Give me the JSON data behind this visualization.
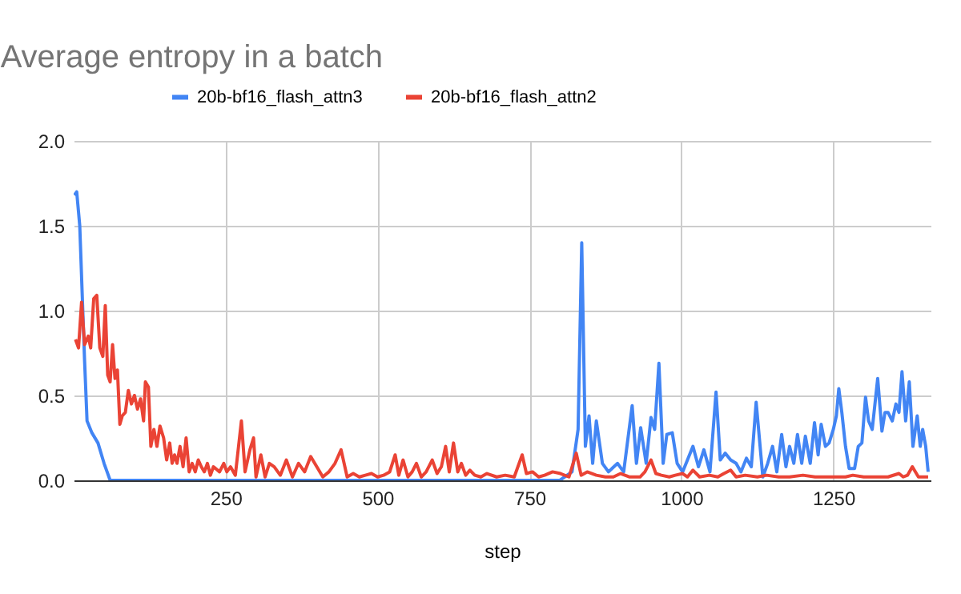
{
  "chart_data": {
    "type": "line",
    "title": "Average entropy in a batch",
    "xlabel": "step",
    "xlim": [
      0,
      1410
    ],
    "ylim": [
      0,
      2
    ],
    "xticks": [
      250,
      500,
      750,
      1000,
      1250
    ],
    "yticks": [
      {
        "value": 0,
        "label": "0.0"
      },
      {
        "value": 0.5,
        "label": "0.5"
      },
      {
        "value": 1,
        "label": "1.0"
      },
      {
        "value": 1.5,
        "label": "1.5"
      },
      {
        "value": 2,
        "label": "2.0"
      }
    ],
    "grid": true,
    "legend": "top",
    "series": [
      {
        "name": "20b-bf16_flash_attn3",
        "color": "#4285f4",
        "x": [
          1,
          5,
          10,
          18,
          22,
          30,
          40,
          50,
          60,
          200,
          400,
          600,
          800,
          820,
          830,
          836,
          842,
          848,
          854,
          860,
          870,
          880,
          895,
          905,
          919,
          926,
          933,
          942,
          950,
          956,
          963,
          970,
          976,
          985,
          993,
          1002,
          1010,
          1019,
          1028,
          1037,
          1047,
          1057,
          1064,
          1072,
          1081,
          1090,
          1098,
          1107,
          1115,
          1123,
          1134,
          1142,
          1150,
          1157,
          1165,
          1172,
          1178,
          1185,
          1191,
          1198,
          1204,
          1212,
          1219,
          1225,
          1230,
          1237,
          1243,
          1250,
          1255,
          1259,
          1264,
          1270,
          1276,
          1285,
          1291,
          1297,
          1303,
          1308,
          1314,
          1323,
          1330,
          1335,
          1340,
          1347,
          1353,
          1358,
          1363,
          1369,
          1375,
          1381,
          1388,
          1393,
          1397,
          1402,
          1406
        ],
        "values": [
          1.68,
          1.7,
          1.5,
          0.7,
          0.35,
          0.28,
          0.22,
          0.1,
          0.0,
          0.0,
          0.0,
          0.0,
          0.0,
          0.05,
          0.3,
          1.4,
          0.2,
          0.38,
          0.1,
          0.35,
          0.1,
          0.05,
          0.1,
          0.05,
          0.44,
          0.1,
          0.31,
          0.1,
          0.37,
          0.3,
          0.69,
          0.1,
          0.27,
          0.28,
          0.1,
          0.05,
          0.12,
          0.2,
          0.08,
          0.18,
          0.05,
          0.52,
          0.12,
          0.16,
          0.12,
          0.1,
          0.05,
          0.13,
          0.08,
          0.46,
          0.02,
          0.1,
          0.2,
          0.05,
          0.27,
          0.08,
          0.2,
          0.1,
          0.27,
          0.1,
          0.26,
          0.1,
          0.34,
          0.15,
          0.33,
          0.2,
          0.22,
          0.3,
          0.38,
          0.54,
          0.4,
          0.2,
          0.07,
          0.07,
          0.2,
          0.22,
          0.49,
          0.35,
          0.3,
          0.6,
          0.29,
          0.4,
          0.4,
          0.35,
          0.45,
          0.4,
          0.64,
          0.35,
          0.58,
          0.2,
          0.38,
          0.2,
          0.3,
          0.2,
          0.05
        ]
      },
      {
        "name": "20b-bf16_flash_attn2",
        "color": "#ea4335",
        "x": [
          3,
          8,
          13,
          18,
          24,
          28,
          33,
          38,
          43,
          48,
          52,
          56,
          60,
          64,
          68,
          72,
          76,
          80,
          85,
          90,
          95,
          100,
          105,
          110,
          115,
          118,
          123,
          127,
          132,
          137,
          142,
          148,
          153,
          158,
          162,
          166,
          170,
          175,
          180,
          185,
          190,
          195,
          200,
          205,
          210,
          215,
          220,
          225,
          230,
          240,
          247,
          252,
          258,
          266,
          276,
          282,
          290,
          296,
          300,
          308,
          315,
          322,
          330,
          340,
          350,
          360,
          370,
          380,
          390,
          400,
          410,
          420,
          430,
          440,
          450,
          460,
          470,
          480,
          490,
          500,
          510,
          520,
          529,
          535,
          542,
          550,
          557,
          564,
          572,
          580,
          590,
          598,
          605,
          612,
          618,
          625,
          632,
          638,
          645,
          652,
          660,
          670,
          680,
          696,
          710,
          725,
          738,
          745,
          755,
          765,
          775,
          788,
          801,
          815,
          827,
          835,
          845,
          860,
          875,
          888,
          900,
          915,
          932,
          940,
          950,
          958,
          967,
          980,
          990,
          1002,
          1010,
          1019,
          1030,
          1046,
          1060,
          1070,
          1081,
          1090,
          1105,
          1125,
          1140,
          1160,
          1178,
          1200,
          1220,
          1240,
          1256,
          1270,
          1282,
          1300,
          1320,
          1340,
          1358,
          1365,
          1372,
          1380,
          1390,
          1397,
          1406
        ],
        "values": [
          0.83,
          0.78,
          1.05,
          0.8,
          0.85,
          0.78,
          1.07,
          1.09,
          0.78,
          0.73,
          1.03,
          0.62,
          0.58,
          0.8,
          0.6,
          0.65,
          0.33,
          0.38,
          0.4,
          0.53,
          0.45,
          0.5,
          0.42,
          0.48,
          0.35,
          0.58,
          0.55,
          0.2,
          0.3,
          0.2,
          0.32,
          0.25,
          0.12,
          0.22,
          0.1,
          0.15,
          0.1,
          0.2,
          0.08,
          0.25,
          0.05,
          0.1,
          0.05,
          0.12,
          0.08,
          0.05,
          0.1,
          0.03,
          0.08,
          0.05,
          0.1,
          0.05,
          0.08,
          0.03,
          0.35,
          0.05,
          0.18,
          0.25,
          0.02,
          0.15,
          0.02,
          0.1,
          0.08,
          0.03,
          0.12,
          0.02,
          0.1,
          0.05,
          0.14,
          0.08,
          0.02,
          0.05,
          0.1,
          0.18,
          0.02,
          0.04,
          0.02,
          0.03,
          0.04,
          0.02,
          0.03,
          0.05,
          0.15,
          0.03,
          0.12,
          0.02,
          0.05,
          0.1,
          0.02,
          0.05,
          0.12,
          0.04,
          0.08,
          0.2,
          0.05,
          0.22,
          0.05,
          0.1,
          0.03,
          0.06,
          0.03,
          0.02,
          0.04,
          0.02,
          0.03,
          0.02,
          0.15,
          0.04,
          0.05,
          0.02,
          0.03,
          0.05,
          0.04,
          0.02,
          0.16,
          0.03,
          0.05,
          0.03,
          0.02,
          0.02,
          0.04,
          0.02,
          0.02,
          0.05,
          0.12,
          0.04,
          0.03,
          0.02,
          0.03,
          0.04,
          0.02,
          0.06,
          0.02,
          0.03,
          0.02,
          0.04,
          0.06,
          0.02,
          0.03,
          0.02,
          0.03,
          0.02,
          0.02,
          0.03,
          0.02,
          0.02,
          0.02,
          0.02,
          0.03,
          0.02,
          0.02,
          0.02,
          0.04,
          0.02,
          0.03,
          0.08,
          0.02,
          0.02,
          0.02
        ]
      }
    ]
  }
}
